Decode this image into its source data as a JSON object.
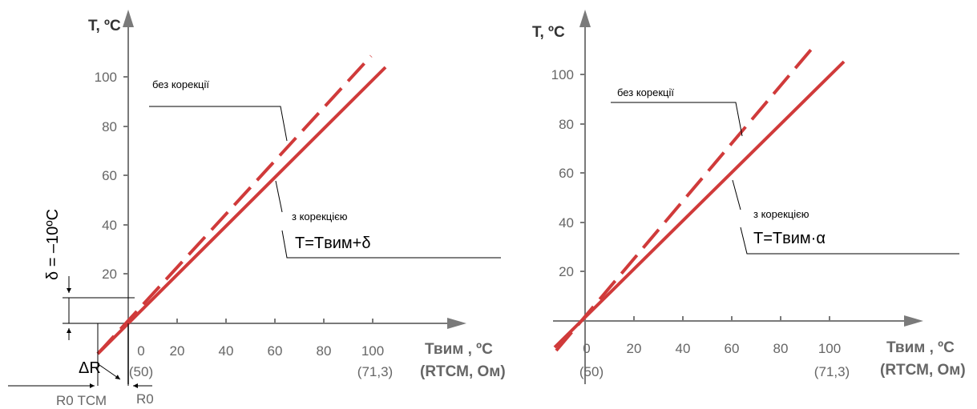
{
  "colors": {
    "line": "#d03a3a",
    "axis": "#7a7a7a",
    "text": "#666666"
  },
  "chart_data": [
    {
      "type": "line",
      "y_axis_label": "T, ºC",
      "y_ticks": [
        "20",
        "40",
        "60",
        "80",
        "100"
      ],
      "x_ticks": [
        "0",
        "20",
        "40",
        "60",
        "80",
        "100"
      ],
      "x_ticks_alt": [
        "(50)",
        "(71,3)"
      ],
      "x_axis_label": "Твим , ºC",
      "x_axis_label2": "(RТСМ, Ом)",
      "note_without": "без корекції",
      "note_with": "з корекцією",
      "equation": "T=Tвим+δ",
      "delta_label": "δ = –10ºC",
      "delta_r": "ΔR",
      "r0": "R0",
      "r0_tcm": "R0 ТСМ",
      "series": [
        {
          "style": "dashed",
          "x": [
            -12,
            100
          ],
          "y": [
            0,
            110
          ]
        },
        {
          "style": "solid",
          "x": [
            -12,
            100
          ],
          "y": [
            -12,
            105
          ]
        }
      ]
    },
    {
      "type": "line",
      "y_axis_label": "T, ºC",
      "y_ticks": [
        "20",
        "40",
        "60",
        "80",
        "100"
      ],
      "x_ticks": [
        "0",
        "20",
        "40",
        "60",
        "80",
        "100"
      ],
      "x_ticks_alt": [
        "(50)",
        "(71,3)"
      ],
      "x_axis_label": "Твим , ºC",
      "x_axis_label2": "(RТСМ, Ом)",
      "note_without": "без корекції",
      "note_with": "з корекцією",
      "equation": "T=Tвим·α",
      "series": [
        {
          "style": "dashed",
          "x": [
            -12,
            95
          ],
          "y": [
            -12,
            115
          ]
        },
        {
          "style": "solid",
          "x": [
            -12,
            107
          ],
          "y": [
            -12,
            105
          ]
        }
      ]
    }
  ]
}
